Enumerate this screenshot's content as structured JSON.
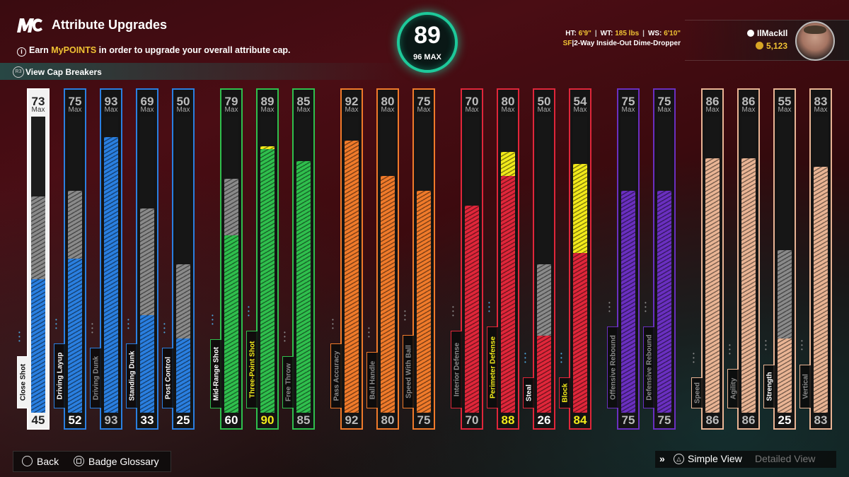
{
  "header": {
    "logo": "MC",
    "title": "Attribute Upgrades",
    "subtitle_pre": "Earn ",
    "subtitle_highlight": "MyPOINTS",
    "subtitle_post": " in order to upgrade your overall attribute cap.",
    "cap_breakers_label": "View Cap Breakers",
    "cap_breakers_button": "R3"
  },
  "overall": {
    "value": "89",
    "max_label": "96 MAX"
  },
  "player": {
    "ht_label": "HT:",
    "ht": "6'9\"",
    "wt_label": "WT:",
    "wt": "185 lbs",
    "ws_label": "WS:",
    "ws": "6'10\"",
    "position": "SF",
    "archetype": "2-Way Inside-Out Dime-Dropper",
    "gamertag": "IlMackIl",
    "vc": "5,123"
  },
  "max_label": "Max",
  "colors": {
    "finishing": "#2a7fe0",
    "shooting": "#2fbf4d",
    "playmaking": "#f07a2a",
    "defense": "#e0263a",
    "rebounding": "#6a2fc0",
    "physicals": "#e9b494",
    "close_shot": "#ffffff",
    "gray": "#8a8a8a",
    "boost": "#f2ea1a"
  },
  "attributes": [
    {
      "name": "Close Shot",
      "max": "73",
      "current": "45",
      "mx": 73,
      "cur": 45,
      "boost": 0,
      "group": "close_shot",
      "lbl": "#ffffff"
    },
    {
      "name": "Driving Layup",
      "max": "75",
      "current": "52",
      "mx": 75,
      "cur": 52,
      "boost": 0,
      "group": "finishing",
      "lbl": "#ffffff"
    },
    {
      "name": "Driving Dunk",
      "max": "93",
      "current": "93",
      "mx": 93,
      "cur": 93,
      "boost": 0,
      "group": "finishing",
      "lbl": "#8a8a8a"
    },
    {
      "name": "Standing Dunk",
      "max": "69",
      "current": "33",
      "mx": 69,
      "cur": 33,
      "boost": 0,
      "group": "finishing",
      "lbl": "#ffffff"
    },
    {
      "name": "Post Control",
      "max": "50",
      "current": "25",
      "mx": 50,
      "cur": 25,
      "boost": 0,
      "group": "finishing",
      "lbl": "#ffffff"
    },
    {
      "name": "Mid-Range Shot",
      "max": "79",
      "current": "60",
      "mx": 79,
      "cur": 60,
      "boost": 0,
      "group": "shooting",
      "lbl": "#ffffff"
    },
    {
      "name": "Three-Point Shot",
      "max": "89",
      "current": "90",
      "mx": 89,
      "cur": 89,
      "boost": 1,
      "group": "shooting",
      "lbl": "#f2ea1a"
    },
    {
      "name": "Free Throw",
      "max": "85",
      "current": "85",
      "mx": 85,
      "cur": 85,
      "boost": 0,
      "group": "shooting",
      "lbl": "#8a8a8a"
    },
    {
      "name": "Pass Accuracy",
      "max": "92",
      "current": "92",
      "mx": 92,
      "cur": 92,
      "boost": 0,
      "group": "playmaking",
      "lbl": "#8a8a8a"
    },
    {
      "name": "Ball Handle",
      "max": "80",
      "current": "80",
      "mx": 80,
      "cur": 80,
      "boost": 0,
      "group": "playmaking",
      "lbl": "#8a8a8a"
    },
    {
      "name": "Speed With Ball",
      "max": "75",
      "current": "75",
      "mx": 75,
      "cur": 75,
      "boost": 0,
      "group": "playmaking",
      "lbl": "#8a8a8a"
    },
    {
      "name": "Interior Defense",
      "max": "70",
      "current": "70",
      "mx": 70,
      "cur": 70,
      "boost": 0,
      "group": "defense",
      "lbl": "#8a8a8a"
    },
    {
      "name": "Perimeter Defense",
      "max": "80",
      "current": "88",
      "mx": 80,
      "cur": 80,
      "boost": 8,
      "group": "defense",
      "lbl": "#f2ea1a"
    },
    {
      "name": "Steal",
      "max": "50",
      "current": "26",
      "mx": 50,
      "cur": 26,
      "boost": 0,
      "group": "defense",
      "lbl": "#ffffff"
    },
    {
      "name": "Block",
      "max": "54",
      "current": "84",
      "mx": 54,
      "cur": 54,
      "boost": 30,
      "group": "defense",
      "lbl": "#f2ea1a"
    },
    {
      "name": "Offensive Rebound",
      "max": "75",
      "current": "75",
      "mx": 75,
      "cur": 75,
      "boost": 0,
      "group": "rebounding",
      "lbl": "#8a8a8a"
    },
    {
      "name": "Defensive Rebound",
      "max": "75",
      "current": "75",
      "mx": 75,
      "cur": 75,
      "boost": 0,
      "group": "rebounding",
      "lbl": "#8a8a8a"
    },
    {
      "name": "Speed",
      "max": "86",
      "current": "86",
      "mx": 86,
      "cur": 86,
      "boost": 0,
      "group": "physicals",
      "lbl": "#8a8a8a"
    },
    {
      "name": "Agility",
      "max": "86",
      "current": "86",
      "mx": 86,
      "cur": 86,
      "boost": 0,
      "group": "physicals",
      "lbl": "#8a8a8a"
    },
    {
      "name": "Strength",
      "max": "55",
      "current": "25",
      "mx": 55,
      "cur": 25,
      "boost": 0,
      "group": "physicals",
      "lbl": "#ffffff"
    },
    {
      "name": "Vertical",
      "max": "83",
      "current": "83",
      "mx": 83,
      "cur": 83,
      "boost": 0,
      "group": "physicals",
      "lbl": "#8a8a8a"
    }
  ],
  "footer": {
    "back": "Back",
    "badge_glossary": "Badge Glossary",
    "simple_view": "Simple View",
    "detailed_view": "Detailed View"
  }
}
